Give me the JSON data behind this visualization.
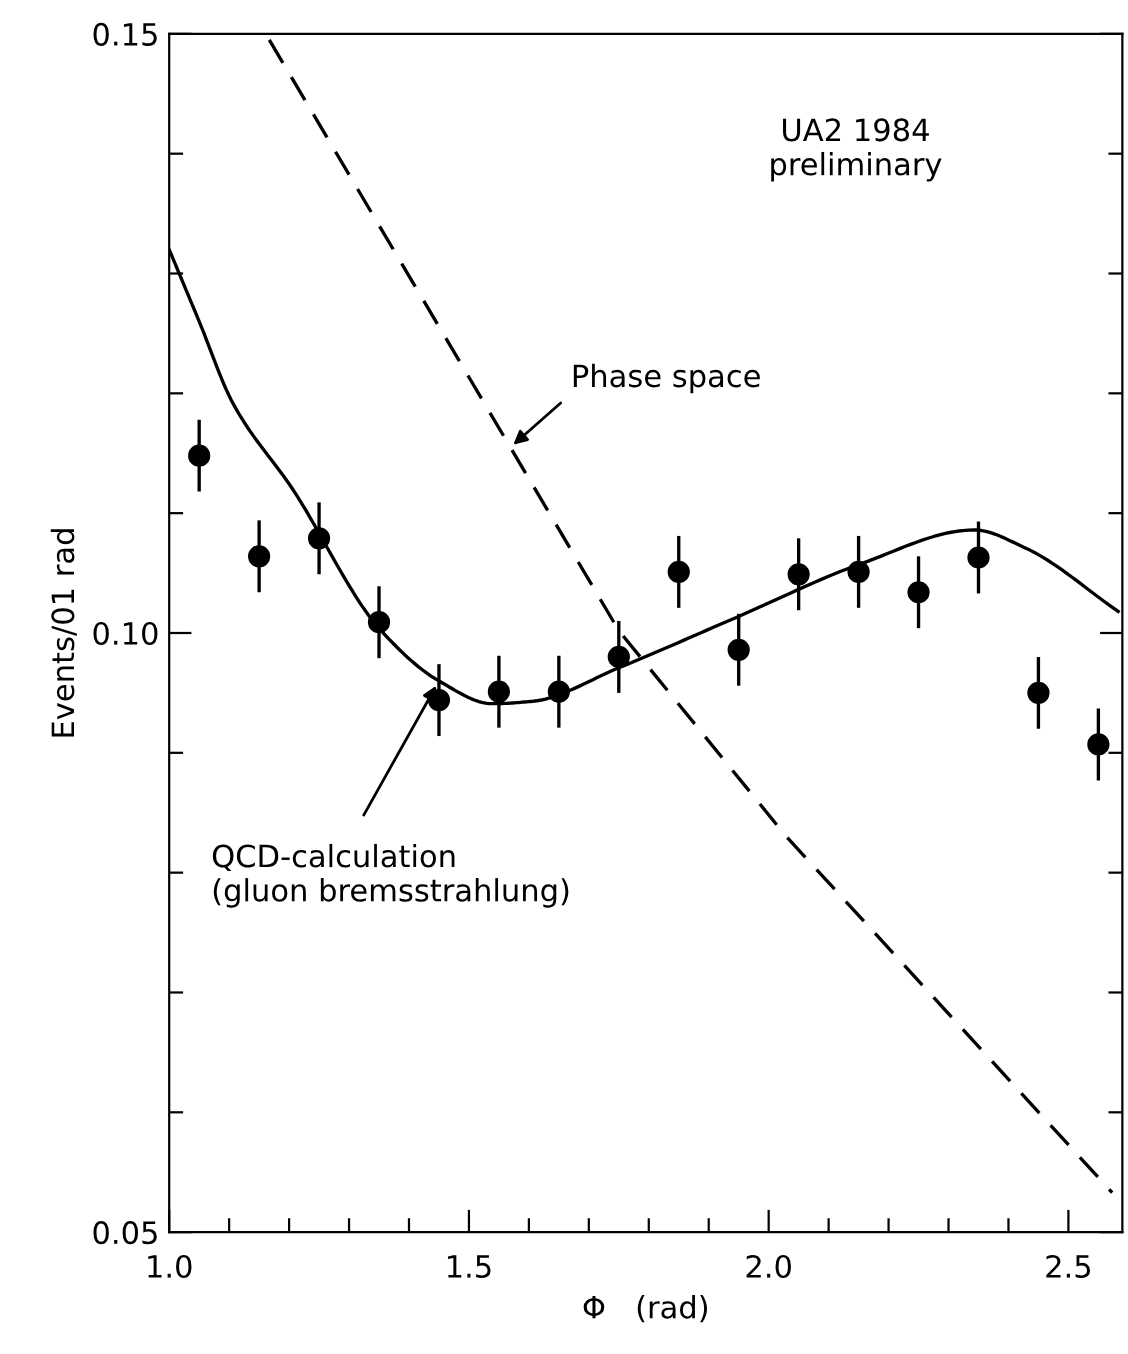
{
  "chart_data": {
    "type": "scatter",
    "xlabel": "Φ   (rad)",
    "ylabel": "Events/01 rad",
    "xlim": [
      1.0,
      2.59
    ],
    "ylim": [
      0.05,
      0.15
    ],
    "xticks": [
      {
        "value": 1.0,
        "label": "1.0"
      },
      {
        "value": 1.1,
        "label": null
      },
      {
        "value": 1.2,
        "label": null
      },
      {
        "value": 1.3,
        "label": null
      },
      {
        "value": 1.4,
        "label": null
      },
      {
        "value": 1.5,
        "label": "1.5"
      },
      {
        "value": 1.6,
        "label": null
      },
      {
        "value": 1.7,
        "label": null
      },
      {
        "value": 1.8,
        "label": null
      },
      {
        "value": 1.9,
        "label": null
      },
      {
        "value": 2.0,
        "label": "2.0"
      },
      {
        "value": 2.1,
        "label": null
      },
      {
        "value": 2.2,
        "label": null
      },
      {
        "value": 2.3,
        "label": null
      },
      {
        "value": 2.4,
        "label": null
      },
      {
        "value": 2.5,
        "label": "2.5"
      }
    ],
    "yticks": [
      {
        "value": 0.05,
        "label": "0.05"
      },
      {
        "value": 0.06,
        "label": null
      },
      {
        "value": 0.07,
        "label": null
      },
      {
        "value": 0.08,
        "label": null
      },
      {
        "value": 0.09,
        "label": null
      },
      {
        "value": 0.1,
        "label": "0.10"
      },
      {
        "value": 0.11,
        "label": null
      },
      {
        "value": 0.12,
        "label": null
      },
      {
        "value": 0.13,
        "label": null
      },
      {
        "value": 0.14,
        "label": null
      },
      {
        "value": 0.15,
        "label": "0.15"
      }
    ],
    "grid": false,
    "legend": false,
    "series": [
      {
        "color": "#000000",
        "marker": "circle",
        "x": [
          1.05,
          1.15,
          1.25,
          1.35,
          1.45,
          1.55,
          1.65,
          1.75,
          1.85,
          1.95,
          2.05,
          2.15,
          2.25,
          2.35,
          2.45,
          2.55
        ],
        "values": [
          0.1148,
          0.1064,
          0.1079,
          0.1009,
          0.0944,
          0.0951,
          0.0951,
          0.098,
          0.1051,
          0.0986,
          0.1049,
          0.1051,
          0.1034,
          0.1063,
          0.095,
          0.0907
        ],
        "errors": [
          0.003,
          0.003,
          0.003,
          0.003,
          0.003,
          0.003,
          0.003,
          0.003,
          0.003,
          0.003,
          0.003,
          0.003,
          0.003,
          0.003,
          0.003,
          0.003
        ]
      },
      {
        "type": "line",
        "color": "#000000",
        "line_style": "solid",
        "x": [
          1.0,
          1.05,
          1.106,
          1.206,
          1.35,
          1.45,
          1.539,
          1.606,
          1.75,
          1.946,
          2.15,
          2.343,
          2.428,
          2.583
        ],
        "values": [
          0.132,
          0.126,
          0.1192,
          0.112,
          0.1004,
          0.096,
          0.0941,
          0.0943,
          0.0971,
          0.1013,
          0.1057,
          0.1086,
          0.1071,
          0.1018
        ]
      },
      {
        "type": "line",
        "color": "#000000",
        "line_style": "dashed",
        "x": [
          1.167,
          1.75,
          2.028,
          2.573
        ],
        "values": [
          0.1495,
          0.1002,
          0.0831,
          0.0533
        ]
      }
    ],
    "annotations": [
      {
        "text": "UA2 1984\npreliminary"
      },
      {
        "text": "Phase space",
        "x": 1.567,
        "y": 0.1154
      },
      {
        "text": "QCD-calculation\n(gluon bremsstrahlung)",
        "x": 1.45,
        "y": 0.096
      }
    ]
  }
}
